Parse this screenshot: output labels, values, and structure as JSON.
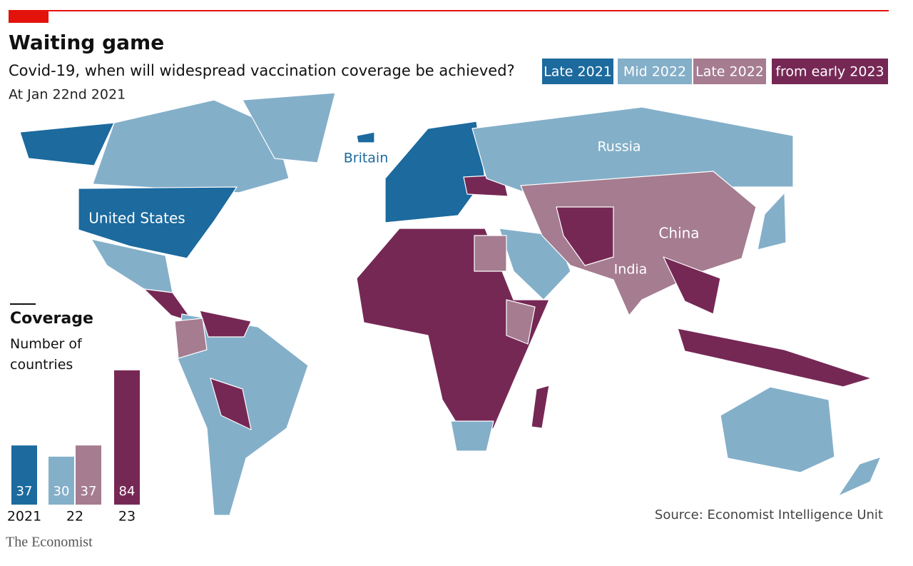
{
  "header": {
    "title": "Waiting game",
    "subtitle": "Covid-19, when will widespread vaccination coverage be achieved?",
    "date": "At Jan 22nd 2021"
  },
  "map_labels": [
    "Britain",
    "Russia",
    "United States",
    "China",
    "India"
  ],
  "chart_data": {
    "type": "bar",
    "title": "Coverage",
    "subtitle": "Number of countries",
    "categories": [
      "2021",
      "22",
      "23"
    ],
    "series": [
      {
        "name": "Late 2021",
        "color": "#1c6a9e",
        "values": [
          37,
          null,
          null
        ]
      },
      {
        "name": "Mid 2022",
        "color": "#84afc9",
        "values": [
          null,
          30,
          null
        ]
      },
      {
        "name": "Late 2022",
        "color": "#a57c90",
        "values": [
          null,
          37,
          null
        ]
      },
      {
        "name": "from early 2023",
        "color": "#762855",
        "values": [
          null,
          null,
          84
        ]
      }
    ]
  },
  "footer": {
    "source": "Source: Economist Intelligence Unit",
    "brand": "The Economist"
  }
}
